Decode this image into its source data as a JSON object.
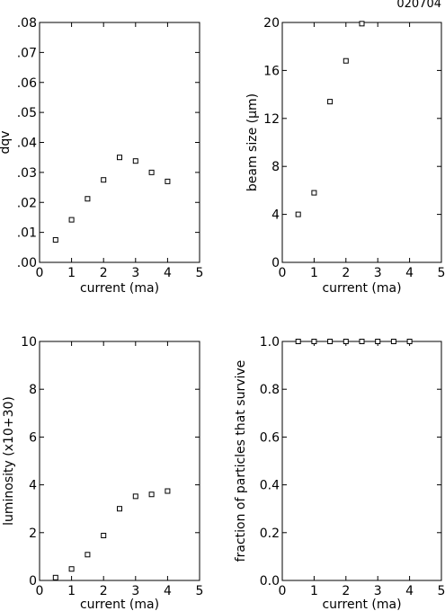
{
  "corner_label": "020704",
  "chart_data": [
    {
      "type": "scatter",
      "xlabel": "current (ma)",
      "ylabel": "dqv",
      "xlim": [
        0,
        5
      ],
      "ylim": [
        0,
        0.08
      ],
      "xticks": [
        0,
        1,
        2,
        3,
        4,
        5
      ],
      "xtick_labels": [
        "0",
        "1",
        "2",
        "3",
        "4",
        "5"
      ],
      "yticks": [
        0,
        0.01,
        0.02,
        0.03,
        0.04,
        0.05,
        0.06,
        0.07,
        0.08
      ],
      "ytick_labels": [
        ".00",
        ".01",
        ".02",
        ".03",
        ".04",
        ".05",
        ".06",
        ".07",
        ".08"
      ],
      "x": [
        0.5,
        1.0,
        1.5,
        2.0,
        2.5,
        3.0,
        3.5,
        4.0
      ],
      "y": [
        0.0075,
        0.0142,
        0.0212,
        0.0275,
        0.035,
        0.0338,
        0.03,
        0.027
      ]
    },
    {
      "type": "scatter",
      "xlabel": "current (ma)",
      "ylabel": "beam size (μm)",
      "xlim": [
        0,
        5
      ],
      "ylim": [
        0,
        20
      ],
      "xticks": [
        0,
        1,
        2,
        3,
        4,
        5
      ],
      "xtick_labels": [
        "0",
        "1",
        "2",
        "3",
        "4",
        "5"
      ],
      "yticks": [
        0,
        4,
        8,
        12,
        16,
        20
      ],
      "ytick_labels": [
        "0",
        "4",
        "8",
        "12",
        "16",
        "20"
      ],
      "x": [
        0.5,
        1.0,
        1.5,
        2.0,
        2.5
      ],
      "y": [
        4.0,
        5.8,
        13.4,
        16.8,
        19.9
      ]
    },
    {
      "type": "scatter",
      "xlabel": "current (ma)",
      "ylabel": "luminosity",
      "ylabel_units": "(x10+30)",
      "xlim": [
        0,
        5
      ],
      "ylim": [
        0,
        10
      ],
      "xticks": [
        0,
        1,
        2,
        3,
        4,
        5
      ],
      "xtick_labels": [
        "0",
        "1",
        "2",
        "3",
        "4",
        "5"
      ],
      "yticks": [
        0,
        2,
        4,
        6,
        8,
        10
      ],
      "ytick_labels": [
        "0",
        "2",
        "4",
        "6",
        "8",
        "10"
      ],
      "x": [
        0.5,
        1.0,
        1.5,
        2.0,
        2.5,
        3.0,
        3.5,
        4.0
      ],
      "y": [
        0.12,
        0.48,
        1.08,
        1.88,
        3.0,
        3.52,
        3.6,
        3.74
      ]
    },
    {
      "type": "scatter",
      "xlabel": "current (ma)",
      "ylabel": "fraction of particles that survive",
      "xlim": [
        0,
        5
      ],
      "ylim": [
        0,
        1
      ],
      "xticks": [
        0,
        1,
        2,
        3,
        4,
        5
      ],
      "xtick_labels": [
        "0",
        "1",
        "2",
        "3",
        "4",
        "5"
      ],
      "yticks": [
        0,
        0.2,
        0.4,
        0.6,
        0.8,
        1.0
      ],
      "ytick_labels": [
        "0.0",
        "0.2",
        "0.4",
        "0.6",
        "0.8",
        "1.0"
      ],
      "x": [
        0.5,
        1.0,
        1.5,
        2.0,
        2.5,
        3.0,
        3.5,
        4.0
      ],
      "y": [
        1.0,
        1.0,
        1.0,
        1.0,
        1.0,
        1.0,
        1.0,
        1.0
      ]
    }
  ]
}
